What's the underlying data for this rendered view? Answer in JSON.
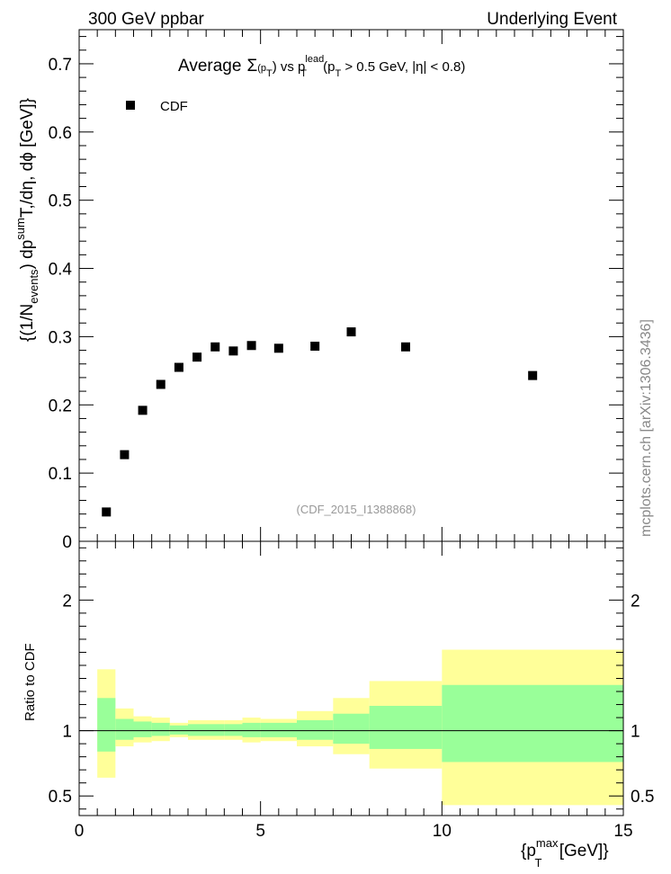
{
  "header": {
    "left": "300 GeV ppbar",
    "right": "Underlying Event"
  },
  "watermark": "mcplots.cern.ch [arXiv:1306.3436]",
  "annotation": "(CDF_2015_I1388868)",
  "title_parts": {
    "a": "Average",
    "sigma": "Σ",
    "b": "(p",
    "sub_T": "T",
    "c": ") vs p",
    "sup_lead": "lead",
    "d": " (p",
    "e": " > 0.5 GeV, |η| < 0.8)"
  },
  "ylabel_parts": {
    "a": "{(1/N",
    "sub": "events",
    "b": ") dp",
    "sup": "sum",
    "c": "T,/dη, dϕ [GeV]}"
  },
  "xlabel_parts": {
    "a": "{p",
    "sup": "max",
    "sub": "T",
    "b": " [GeV]}"
  },
  "ratio_label": "Ratio to CDF",
  "colors": {
    "band_inner": "#99ff99",
    "band_outer": "#ffff99",
    "marker": "#000000"
  },
  "chart_data": [
    {
      "type": "scatter",
      "title": "Average Σ(pT) vs pT lead (pT > 0.5 GeV, |η| < 0.8)",
      "ylabel": "{(1/Nevents) dpsumT,/dη, dϕ [GeV]}",
      "xlim": [
        0,
        15
      ],
      "ylim": [
        0,
        0.75
      ],
      "x_ticks": [
        "0",
        "5",
        "10",
        "15"
      ],
      "y_ticks": [
        "0",
        "0.1",
        "0.2",
        "0.3",
        "0.4",
        "0.5",
        "0.6",
        "0.7"
      ],
      "legend_position": "top-left",
      "series": [
        {
          "name": "CDF",
          "x": [
            0.75,
            1.25,
            1.75,
            2.25,
            2.75,
            3.25,
            3.75,
            4.25,
            4.75,
            5.5,
            6.5,
            7.5,
            9.0,
            12.5
          ],
          "y": [
            0.043,
            0.127,
            0.192,
            0.23,
            0.255,
            0.27,
            0.285,
            0.279,
            0.287,
            0.283,
            0.286,
            0.307,
            0.285,
            0.243
          ]
        }
      ]
    },
    {
      "type": "area",
      "ylabel": "Ratio to CDF",
      "xlabel": "{pTmax [GeV]}",
      "xlim": [
        0,
        15
      ],
      "ylim": [
        0.35,
        2.45
      ],
      "x_ticks": [
        "0",
        "5",
        "10",
        "15"
      ],
      "y_ticks": [
        "0.5",
        "1",
        "2"
      ],
      "reference_line": 1.0,
      "bins": [
        {
          "lo": 0.5,
          "hi": 1.0,
          "inner": [
            0.84,
            1.25
          ],
          "outer": [
            0.64,
            1.47
          ]
        },
        {
          "lo": 1.0,
          "hi": 1.5,
          "inner": [
            0.93,
            1.09
          ],
          "outer": [
            0.88,
            1.17
          ]
        },
        {
          "lo": 1.5,
          "hi": 2.0,
          "inner": [
            0.95,
            1.07
          ],
          "outer": [
            0.91,
            1.11
          ]
        },
        {
          "lo": 2.0,
          "hi": 2.5,
          "inner": [
            0.96,
            1.06
          ],
          "outer": [
            0.92,
            1.1
          ]
        },
        {
          "lo": 2.5,
          "hi": 3.0,
          "inner": [
            0.97,
            1.04
          ],
          "outer": [
            0.95,
            1.06
          ]
        },
        {
          "lo": 3.0,
          "hi": 4.0,
          "inner": [
            0.96,
            1.05
          ],
          "outer": [
            0.93,
            1.08
          ]
        },
        {
          "lo": 4.0,
          "hi": 4.5,
          "inner": [
            0.96,
            1.05
          ],
          "outer": [
            0.93,
            1.08
          ]
        },
        {
          "lo": 4.5,
          "hi": 5.0,
          "inner": [
            0.95,
            1.06
          ],
          "outer": [
            0.91,
            1.1
          ]
        },
        {
          "lo": 5.0,
          "hi": 6.0,
          "inner": [
            0.95,
            1.06
          ],
          "outer": [
            0.92,
            1.09
          ]
        },
        {
          "lo": 6.0,
          "hi": 7.0,
          "inner": [
            0.93,
            1.08
          ],
          "outer": [
            0.88,
            1.15
          ]
        },
        {
          "lo": 7.0,
          "hi": 8.0,
          "inner": [
            0.9,
            1.13
          ],
          "outer": [
            0.82,
            1.25
          ]
        },
        {
          "lo": 8.0,
          "hi": 10.0,
          "inner": [
            0.86,
            1.19
          ],
          "outer": [
            0.71,
            1.38
          ]
        },
        {
          "lo": 10.0,
          "hi": 15.0,
          "inner": [
            0.76,
            1.35
          ],
          "outer": [
            0.43,
            1.62
          ]
        }
      ]
    }
  ]
}
